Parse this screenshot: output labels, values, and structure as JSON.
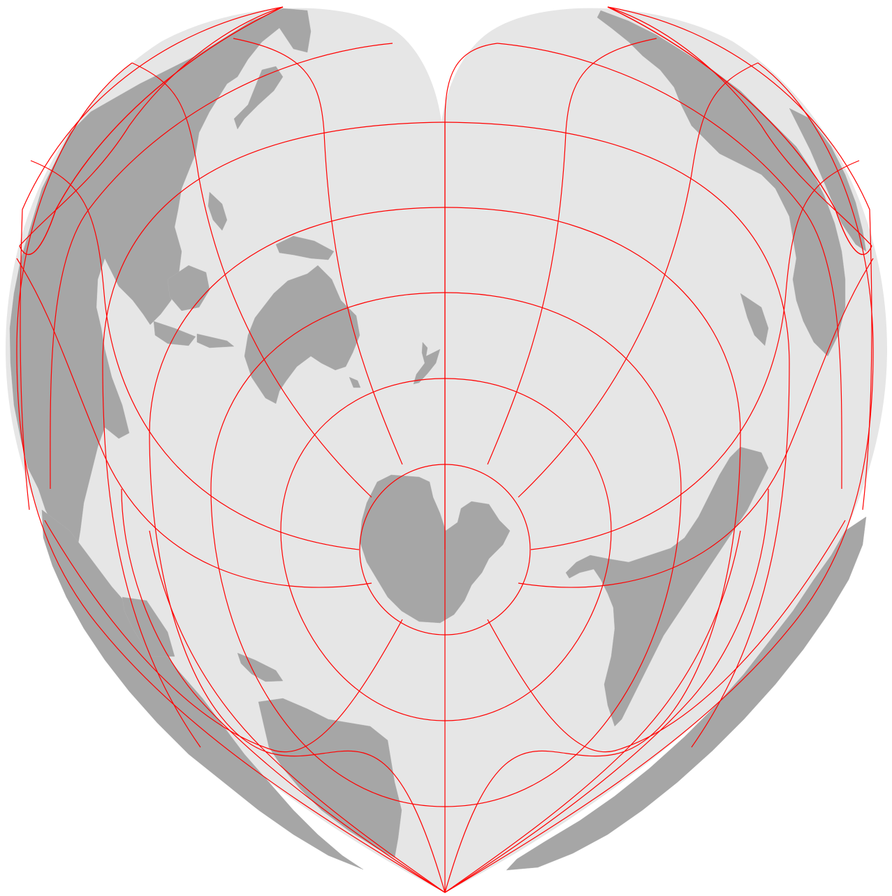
{
  "map": {
    "projection": "bonne-heart",
    "center": "south-pole",
    "colors": {
      "sphere": "#e6e6e6",
      "land": "#a6a6a6",
      "graticule": "#ff0000",
      "background": "#ffffff"
    },
    "layers": [
      "sphere",
      "land",
      "graticule"
    ],
    "landmasses": [
      "antarctica",
      "australia",
      "new-zealand",
      "asia",
      "south-america",
      "north-america",
      "africa",
      "europe"
    ]
  }
}
